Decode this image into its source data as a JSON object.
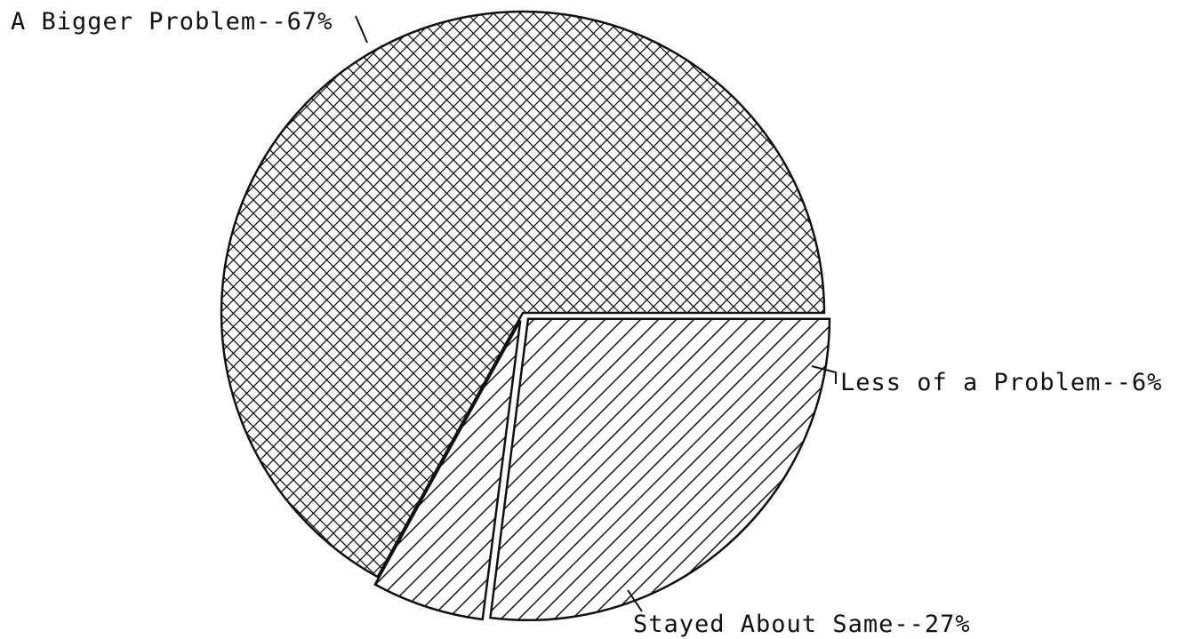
{
  "chart_data": {
    "type": "pie",
    "title": "",
    "slices": [
      {
        "label": "A Bigger Problem--67%",
        "value": 67,
        "fill": "crosshatch",
        "exploded": false
      },
      {
        "label": "Less of a Problem--6%",
        "value": 6,
        "fill": "hatch",
        "exploded": true
      },
      {
        "label": "Stayed About Same--27%",
        "value": 27,
        "fill": "hatch",
        "exploded": true
      }
    ],
    "colors": {
      "ink": "#111111",
      "background": "#ffffff"
    }
  }
}
